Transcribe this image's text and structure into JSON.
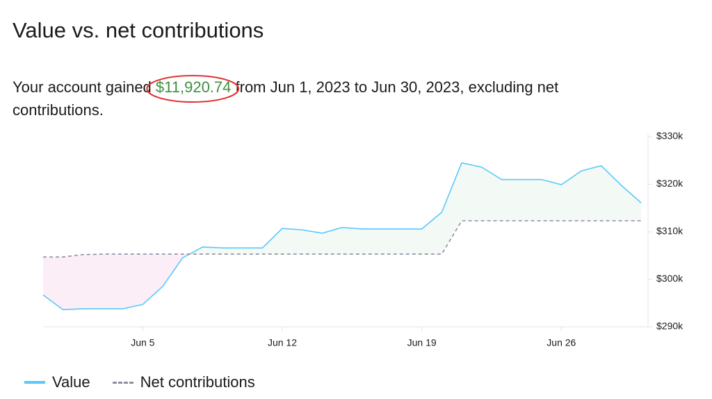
{
  "title": "Value vs. net contributions",
  "summary": {
    "before": "Your account gained ",
    "amount": "$11,920.74",
    "after": " from Jun 1, 2023 to Jun 30, 2023, excluding net contributions."
  },
  "chart_data": {
    "type": "line",
    "x": [
      0,
      1,
      2,
      3,
      4,
      5,
      6,
      7,
      8,
      9,
      10,
      11,
      12,
      13,
      14,
      15,
      16,
      17,
      18,
      19,
      20,
      21,
      22,
      23,
      24,
      25,
      26,
      27,
      28,
      29,
      30
    ],
    "xlim": [
      0,
      30
    ],
    "xticks": [
      {
        "value": 5,
        "label": "Jun 5"
      },
      {
        "value": 12,
        "label": "Jun 12"
      },
      {
        "value": 19,
        "label": "Jun 19"
      },
      {
        "value": 26,
        "label": "Jun 26"
      }
    ],
    "ylim": [
      290,
      330
    ],
    "yticks": [
      {
        "value": 290,
        "label": "$290k"
      },
      {
        "value": 300,
        "label": "$300k"
      },
      {
        "value": 310,
        "label": "$310k"
      },
      {
        "value": 320,
        "label": "$320k"
      },
      {
        "value": 330,
        "label": "$330k"
      }
    ],
    "series": [
      {
        "name": "Value",
        "color": "#5ac8fa",
        "style": "solid",
        "values": [
          296.7,
          293.6,
          293.8,
          293.8,
          293.8,
          294.7,
          298.5,
          304.5,
          306.8,
          306.6,
          306.6,
          306.6,
          310.7,
          310.4,
          309.7,
          310.9,
          310.6,
          310.6,
          310.6,
          310.6,
          314.1,
          324.5,
          323.6,
          321.0,
          321.0,
          321.0,
          319.9,
          322.8,
          323.9,
          319.8,
          316.1
        ]
      },
      {
        "name": "Net contributions",
        "color": "#8e8ea0",
        "style": "dashed",
        "values": [
          304.7,
          304.7,
          305.2,
          305.3,
          305.3,
          305.3,
          305.3,
          305.3,
          305.3,
          305.3,
          305.3,
          305.3,
          305.3,
          305.3,
          305.3,
          305.3,
          305.3,
          305.3,
          305.3,
          305.3,
          305.3,
          312.3,
          312.3,
          312.3,
          312.3,
          312.3,
          312.3,
          312.3,
          312.3,
          312.3,
          312.3
        ]
      }
    ]
  }
}
